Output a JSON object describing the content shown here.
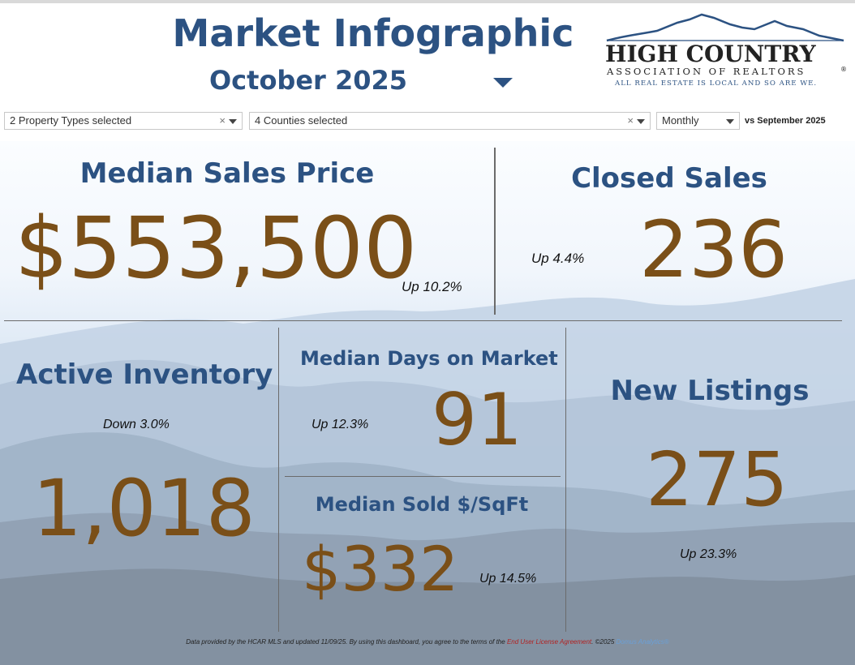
{
  "header": {
    "title": "Market Infographic",
    "period": "October 2025"
  },
  "logo": {
    "line1": "HIGH COUNTRY",
    "line2": "ASSOCIATION OF REALTORS",
    "tagline": "ALL REAL ESTATE IS LOCAL AND SO ARE WE.",
    "reg": "®"
  },
  "filters": {
    "property_types": "2 Property Types selected",
    "counties": "4 Counties selected",
    "frequency": "Monthly",
    "comparison": "vs September 2025",
    "clear_glyph": "×"
  },
  "metrics": {
    "median_sales_price": {
      "label": "Median Sales Price",
      "value": "$553,500",
      "change": "Up 10.2%"
    },
    "closed_sales": {
      "label": "Closed Sales",
      "value": "236",
      "change": "Up 4.4%"
    },
    "active_inventory": {
      "label": "Active Inventory",
      "value": "1,018",
      "change": "Down 3.0%"
    },
    "median_days_on_market": {
      "label": "Median Days on Market",
      "value": "91",
      "change": "Up 12.3%"
    },
    "median_sold_per_sqft": {
      "label": "Median Sold $/SqFt",
      "value": "$332",
      "change": "Up 14.5%"
    },
    "new_listings": {
      "label": "New Listings",
      "value": "275",
      "change": "Up 23.3%"
    }
  },
  "footer": {
    "text": "Data provided by the HCAR MLS and updated 11/09/25.  By using this dashboard, you agree to the terms of the",
    "link": "End User License Agreement",
    "copyright": ".  ©2025",
    "brand": "Domus Analytics®"
  },
  "colors": {
    "title": "#2c5282",
    "value": "#7a4f18",
    "divider": "#6b6b6b",
    "logo_text": "#222222",
    "logo_mountain": "#2c5282"
  }
}
